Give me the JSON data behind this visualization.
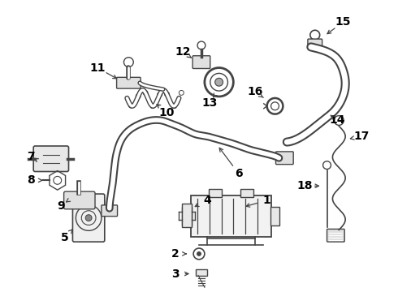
{
  "background_color": "#ffffff",
  "line_color": "#444444",
  "text_color": "#000000",
  "figsize": [
    4.9,
    3.6
  ],
  "dpi": 100,
  "label_fontsize": 10
}
